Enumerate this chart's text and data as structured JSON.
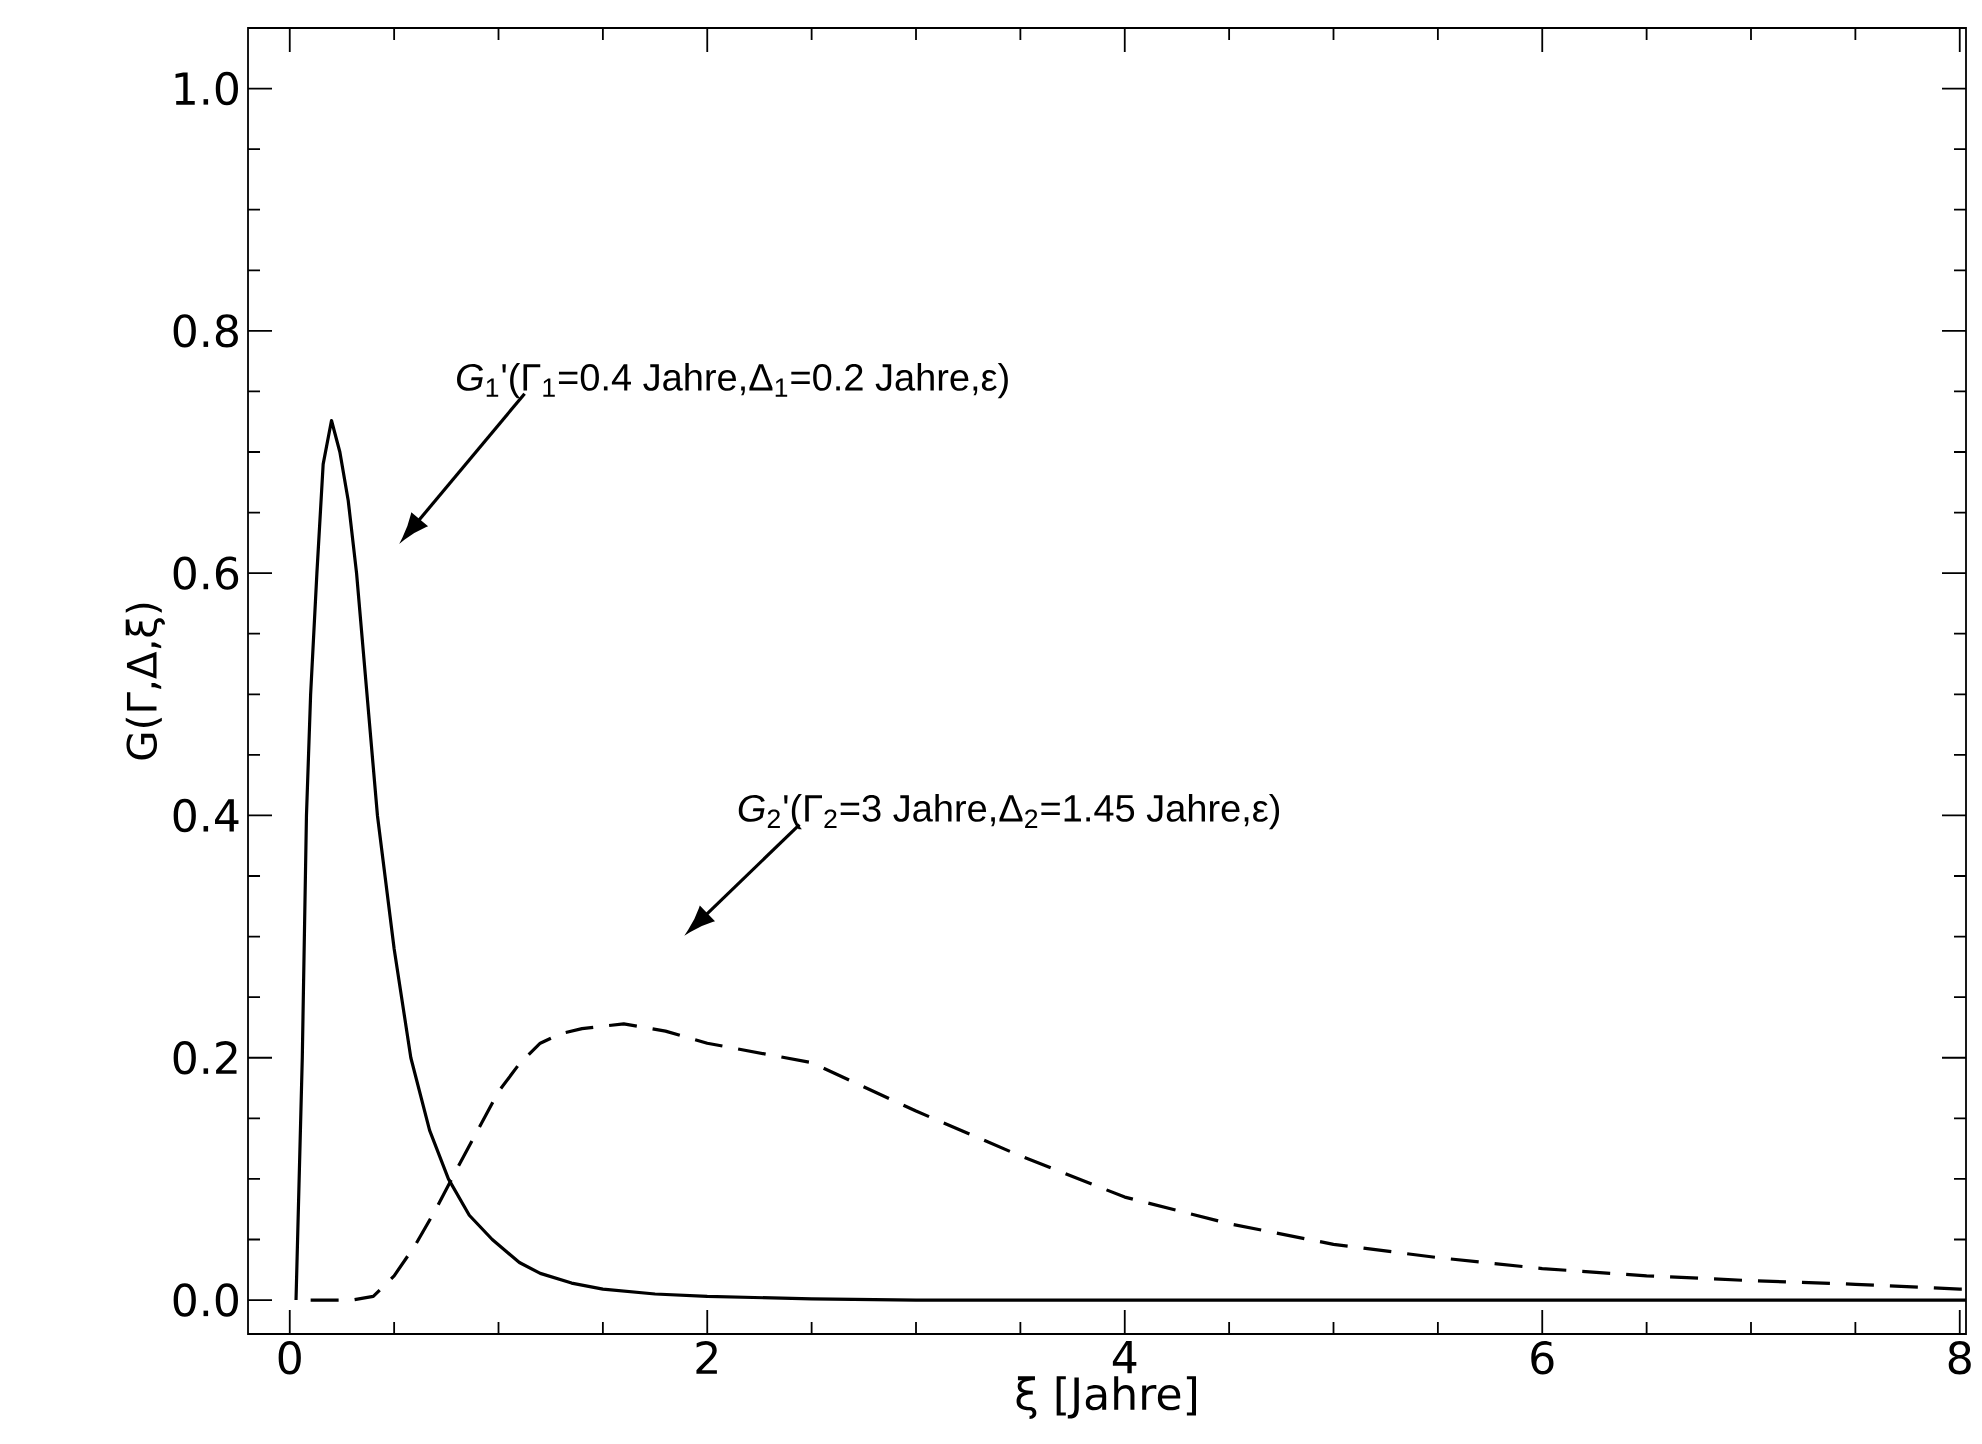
{
  "chart_data": {
    "type": "line",
    "xlabel": "ξ [Jahre]",
    "ylabel": "G(Γ,Δ,ξ)",
    "xlim": [
      -0.2,
      8.03
    ],
    "ylim": [
      -0.028,
      1.05
    ],
    "xticks": [
      0,
      2,
      4,
      6,
      8
    ],
    "yticks": [
      {
        "value": 0,
        "label": "0.0"
      },
      {
        "value": 0.2,
        "label": "0.2"
      },
      {
        "value": 0.4,
        "label": "0.4"
      },
      {
        "value": 0.6,
        "label": "0.6"
      },
      {
        "value": 0.8,
        "label": "0.8"
      },
      {
        "value": 1.0,
        "label": "1.0"
      }
    ],
    "marker": "none",
    "series": [
      {
        "color": "#000000",
        "line_style": "solid",
        "x": [
          0.03,
          0.06,
          0.08,
          0.1,
          0.13,
          0.16,
          0.2,
          0.24,
          0.28,
          0.32,
          0.37,
          0.42,
          0.5,
          0.58,
          0.67,
          0.76,
          0.86,
          0.97,
          1.1,
          1.2,
          1.35,
          1.5,
          1.75,
          2,
          2.5,
          3,
          4,
          5,
          6,
          7,
          8,
          8.03
        ],
        "values": [
          0,
          0.2,
          0.4,
          0.5,
          0.6,
          0.69,
          0.726,
          0.7,
          0.66,
          0.6,
          0.5,
          0.4,
          0.29,
          0.2,
          0.14,
          0.1,
          0.07,
          0.05,
          0.031,
          0.022,
          0.014,
          0.009,
          0.005,
          0.003,
          0.001,
          0,
          0,
          0,
          0,
          0,
          0,
          0
        ]
      },
      {
        "color": "#000000",
        "line_style": "dashed",
        "x": [
          0.1,
          0.3,
          0.4,
          0.5,
          0.6,
          0.7,
          0.8,
          0.9,
          1.0,
          1.1,
          1.2,
          1.3,
          1.4,
          1.6,
          1.8,
          2,
          2.5,
          3,
          3.5,
          4,
          4.5,
          5,
          5.5,
          6,
          6.5,
          7,
          7.5,
          8,
          8.03
        ],
        "values": [
          0,
          0,
          0.003,
          0.02,
          0.045,
          0.075,
          0.108,
          0.14,
          0.172,
          0.195,
          0.212,
          0.22,
          0.224,
          0.228,
          0.222,
          0.212,
          0.196,
          0.156,
          0.119,
          0.085,
          0.063,
          0.046,
          0.035,
          0.026,
          0.02,
          0.016,
          0.013,
          0.009,
          0.009
        ]
      }
    ],
    "annotations": [
      "*G*$_{1}$'(Γ$_{1}$=0.4 Jahre,Δ$_{1}$=0.2 Jahre,ε)",
      "*G*$_{2}$'(Γ$_{2}$=3 Jahre,Δ$_{2}$=1.45 Jahre,ε)"
    ]
  }
}
